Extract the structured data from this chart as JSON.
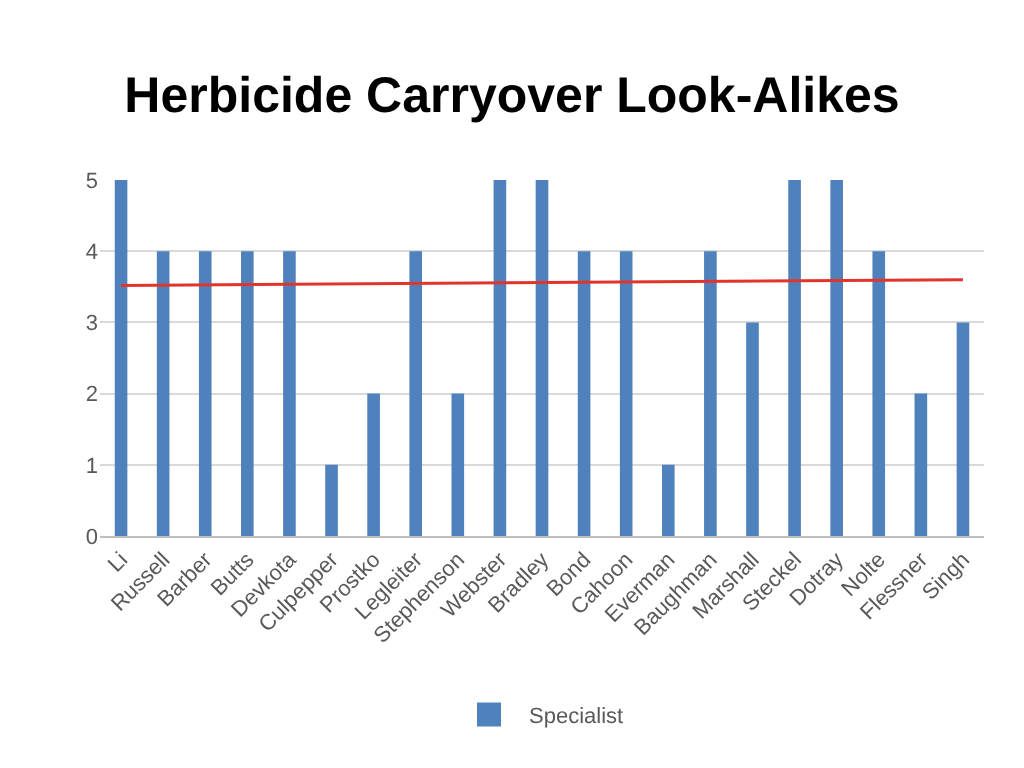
{
  "chart_data": {
    "type": "bar",
    "title": "Herbicide Carryover Look-Alikes",
    "categories": [
      "Li",
      "Russell",
      "Barber",
      "Butts",
      "Devkota",
      "Culpepper",
      "Prostko",
      "Legleiter",
      "Stephenson",
      "Webster",
      "Bradley",
      "Bond",
      "Cahoon",
      "Everman",
      "Baughman",
      "Marshall",
      "Steckel",
      "Dotray",
      "Nolte",
      "Flessner",
      "Singh"
    ],
    "series": [
      {
        "name": "Specialist",
        "color": "#4f81bd",
        "values": [
          5,
          4,
          4,
          4,
          4,
          1,
          2,
          4,
          2,
          5,
          5,
          4,
          4,
          1,
          4,
          3,
          5,
          5,
          4,
          2,
          3
        ]
      },
      {
        "type": "line",
        "color": "#e0352b",
        "x": [
          "Li",
          "Singh"
        ],
        "values": [
          3.52,
          3.6
        ]
      }
    ],
    "ylim": [
      0,
      5
    ],
    "yticks": [
      0,
      1,
      2,
      3,
      4,
      5
    ],
    "grid": "y",
    "legend": "bottom"
  }
}
